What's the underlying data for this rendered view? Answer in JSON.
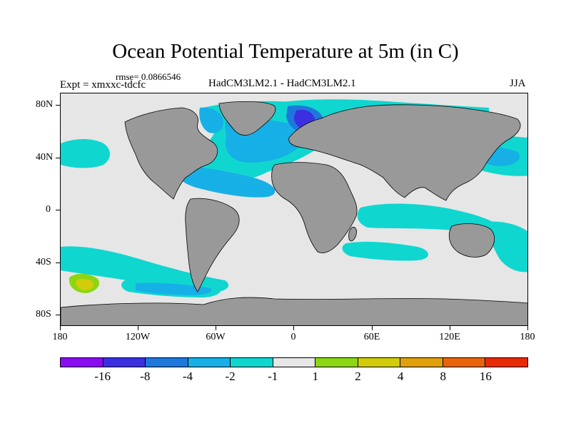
{
  "title": "Ocean Potential Temperature at 5m (in C)",
  "rmse_label": "rmse= 0.0866546",
  "expt_label": "Expt = xmxxc-tdcfc",
  "models_label": "HadCM3LM2.1 - HadCM3LM2.1",
  "season_label": "JJA",
  "lat_labels": [
    "80N",
    "40N",
    "0",
    "40S",
    "80S"
  ],
  "lon_labels": [
    "180",
    "120W",
    "60W",
    "0",
    "60E",
    "120E",
    "180"
  ],
  "colorbar": {
    "colors": [
      "#8a0cf0",
      "#3a30e0",
      "#1e78dc",
      "#16b0e6",
      "#10d6d0",
      "#e6e6e6",
      "#8cd612",
      "#d2cc0a",
      "#e0a00a",
      "#e86408",
      "#e82a06"
    ],
    "labels": [
      "-16",
      "-8",
      "-4",
      "-2",
      "-1",
      "1",
      "2",
      "4",
      "8",
      "16"
    ]
  },
  "map_colors": {
    "background": "#e6e6e6",
    "land": "#999999",
    "coast": "#000000"
  }
}
